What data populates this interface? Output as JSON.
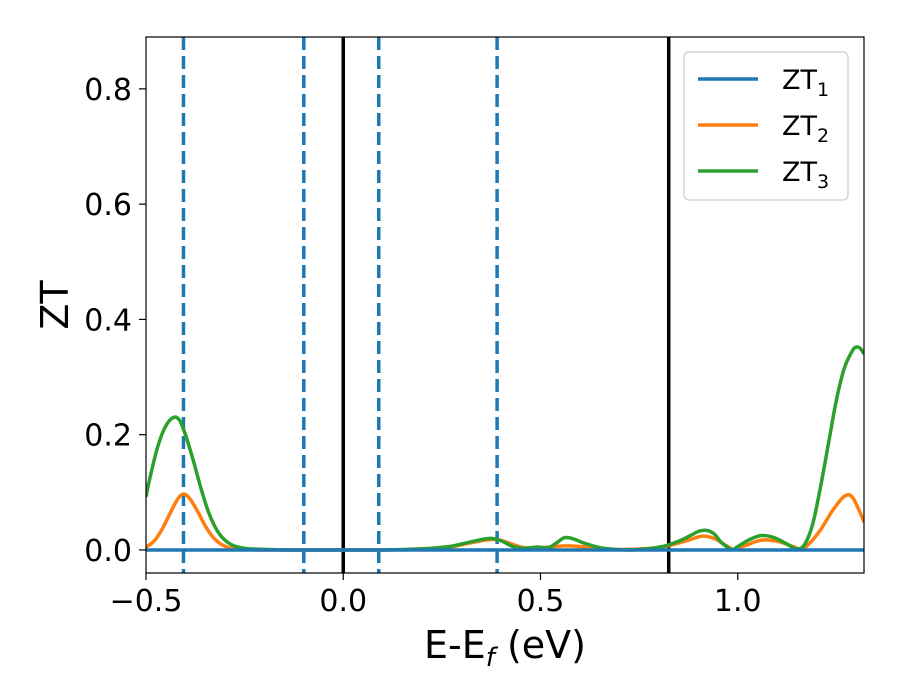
{
  "chart_data": {
    "type": "line",
    "xlabel_main": "E-E",
    "xlabel_sub": "f",
    "xlabel_unit": " (eV)",
    "ylabel": "ZT",
    "xlim": [
      -0.5,
      1.32
    ],
    "ylim": [
      -0.04,
      0.89
    ],
    "grid": false,
    "legend_position": "top-right",
    "xticks": [
      {
        "value": -0.5,
        "label": "−0.5"
      },
      {
        "value": 0.0,
        "label": "0.0"
      },
      {
        "value": 0.5,
        "label": "0.5"
      },
      {
        "value": 1.0,
        "label": "1.0"
      }
    ],
    "yticks": [
      {
        "value": 0.0,
        "label": "0.0"
      },
      {
        "value": 0.2,
        "label": "0.2"
      },
      {
        "value": 0.4,
        "label": "0.4"
      },
      {
        "value": 0.6,
        "label": "0.6"
      },
      {
        "value": 0.8,
        "label": "0.8"
      }
    ],
    "vlines_solid": [
      0.0,
      0.825
    ],
    "vlines_dashed": [
      -0.405,
      -0.1,
      0.09,
      0.39
    ],
    "series": [
      {
        "name_main": "ZT",
        "name_sub": "1",
        "color": "#1f77b4",
        "x": [
          -0.5,
          1.32
        ],
        "y": [
          0.0,
          0.0
        ]
      },
      {
        "name_main": "ZT",
        "name_sub": "2",
        "color": "#ff7f0e",
        "x": [
          -0.5,
          -0.48,
          -0.46,
          -0.44,
          -0.42,
          -0.405,
          -0.39,
          -0.37,
          -0.35,
          -0.33,
          -0.31,
          -0.29,
          -0.27,
          -0.25,
          -0.22,
          -0.18,
          -0.1,
          0.0,
          0.1,
          0.2,
          0.27,
          0.32,
          0.36,
          0.39,
          0.42,
          0.45,
          0.48,
          0.52,
          0.56,
          0.6,
          0.64,
          0.68,
          0.72,
          0.76,
          0.8,
          0.84,
          0.88,
          0.91,
          0.94,
          0.97,
          0.99,
          1.02,
          1.06,
          1.1,
          1.14,
          1.16,
          1.18,
          1.21,
          1.24,
          1.27,
          1.29,
          1.31,
          1.32
        ],
        "y": [
          0.005,
          0.015,
          0.035,
          0.062,
          0.088,
          0.097,
          0.09,
          0.068,
          0.042,
          0.022,
          0.01,
          0.004,
          0.002,
          0.001,
          0.0,
          0.0,
          0.0,
          0.0,
          0.0,
          0.001,
          0.005,
          0.012,
          0.017,
          0.018,
          0.012,
          0.005,
          0.003,
          0.005,
          0.007,
          0.006,
          0.003,
          0.001,
          0.001,
          0.002,
          0.004,
          0.01,
          0.018,
          0.024,
          0.02,
          0.008,
          0.001,
          0.008,
          0.017,
          0.015,
          0.006,
          0.001,
          0.01,
          0.035,
          0.068,
          0.093,
          0.092,
          0.065,
          0.048
        ]
      },
      {
        "name_main": "ZT",
        "name_sub": "3",
        "color": "#2ca02c",
        "x": [
          -0.5,
          -0.49,
          -0.47,
          -0.45,
          -0.43,
          -0.415,
          -0.4,
          -0.38,
          -0.36,
          -0.34,
          -0.32,
          -0.3,
          -0.28,
          -0.26,
          -0.24,
          -0.2,
          -0.15,
          -0.1,
          0.0,
          0.1,
          0.2,
          0.27,
          0.31,
          0.35,
          0.375,
          0.4,
          0.43,
          0.46,
          0.49,
          0.52,
          0.54,
          0.56,
          0.58,
          0.61,
          0.65,
          0.69,
          0.73,
          0.77,
          0.81,
          0.85,
          0.88,
          0.9,
          0.92,
          0.94,
          0.96,
          0.985,
          1.0,
          1.03,
          1.06,
          1.09,
          1.12,
          1.15,
          1.17,
          1.19,
          1.21,
          1.23,
          1.25,
          1.27,
          1.29,
          1.3,
          1.31,
          1.32
        ],
        "y": [
          0.092,
          0.125,
          0.18,
          0.215,
          0.23,
          0.225,
          0.2,
          0.155,
          0.105,
          0.063,
          0.034,
          0.017,
          0.008,
          0.004,
          0.002,
          0.001,
          0.0,
          0.0,
          0.0,
          0.0,
          0.002,
          0.006,
          0.012,
          0.018,
          0.02,
          0.016,
          0.006,
          0.003,
          0.005,
          0.004,
          0.012,
          0.021,
          0.02,
          0.012,
          0.004,
          0.001,
          0.0,
          0.002,
          0.006,
          0.015,
          0.025,
          0.032,
          0.034,
          0.028,
          0.012,
          0.001,
          0.006,
          0.018,
          0.025,
          0.022,
          0.012,
          0.002,
          0.01,
          0.045,
          0.11,
          0.185,
          0.26,
          0.315,
          0.345,
          0.352,
          0.35,
          0.34
        ]
      }
    ]
  }
}
